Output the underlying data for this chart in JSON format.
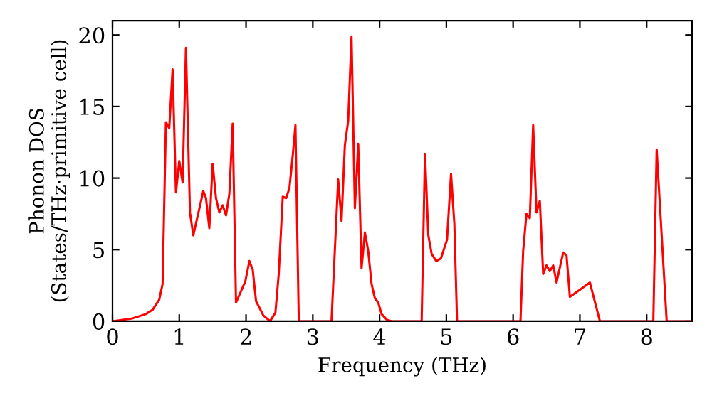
{
  "chart_data": {
    "type": "line",
    "xlabel": "Frequency (THz)",
    "ylabel": "Phonon DOS\n(States/THz·primitive cell)",
    "xlim": [
      0,
      8.68
    ],
    "ylim": [
      0,
      21
    ],
    "xticks": [
      0,
      1,
      2,
      3,
      4,
      5,
      6,
      7,
      8
    ],
    "yticks": [
      0,
      5,
      10,
      15,
      20
    ],
    "grid": false,
    "legend": false,
    "marker": "none",
    "line_style": "solid",
    "series": [
      {
        "color": "#ff0000",
        "x": [
          0,
          0.3,
          0.5,
          0.6,
          0.7,
          0.75,
          0.8,
          0.85,
          0.9,
          0.95,
          1.0,
          1.05,
          1.1,
          1.16,
          1.21,
          1.36,
          1.4,
          1.45,
          1.5,
          1.55,
          1.6,
          1.65,
          1.7,
          1.75,
          1.8,
          1.85,
          1.99,
          2.05,
          2.1,
          2.15,
          2.26,
          2.36,
          2.44,
          2.49,
          2.55,
          2.6,
          2.65,
          2.7,
          2.74,
          2.79,
          3.28,
          3.38,
          3.43,
          3.48,
          3.53,
          3.58,
          3.63,
          3.68,
          3.73,
          3.78,
          3.83,
          3.88,
          3.93,
          3.98,
          4.03,
          4.11,
          4.18,
          4.63,
          4.68,
          4.73,
          4.78,
          4.85,
          4.92,
          5.01,
          5.07,
          5.12,
          5.16,
          6.11,
          6.15,
          6.2,
          6.25,
          6.3,
          6.35,
          6.4,
          6.45,
          6.5,
          6.55,
          6.6,
          6.65,
          6.75,
          6.8,
          6.85,
          7.15,
          7.3,
          8.1,
          8.15,
          8.3,
          8.68
        ],
        "values": [
          0,
          0.2,
          0.5,
          0.8,
          1.5,
          2.6,
          13.9,
          13.5,
          17.6,
          9.0,
          11.2,
          9.7,
          19.1,
          7.6,
          6.0,
          9.1,
          8.6,
          6.5,
          11.0,
          8.6,
          7.6,
          8.1,
          7.4,
          8.9,
          13.8,
          1.3,
          2.8,
          4.2,
          3.6,
          1.4,
          0.4,
          0,
          0.6,
          3.3,
          8.7,
          8.6,
          9.3,
          11.6,
          13.7,
          0,
          0,
          9.9,
          7.0,
          12.3,
          14.0,
          19.9,
          7.9,
          12.4,
          3.7,
          6.2,
          4.9,
          2.6,
          1.6,
          1.3,
          0.5,
          0.1,
          0,
          0,
          11.7,
          6.0,
          4.7,
          4.2,
          4.4,
          5.7,
          10.3,
          6.8,
          0,
          0,
          4.9,
          7.5,
          7.2,
          13.7,
          7.6,
          8.4,
          3.3,
          3.9,
          3.5,
          3.9,
          2.7,
          4.8,
          4.6,
          1.7,
          2.7,
          0,
          0,
          12.0,
          0,
          0
        ]
      }
    ]
  }
}
